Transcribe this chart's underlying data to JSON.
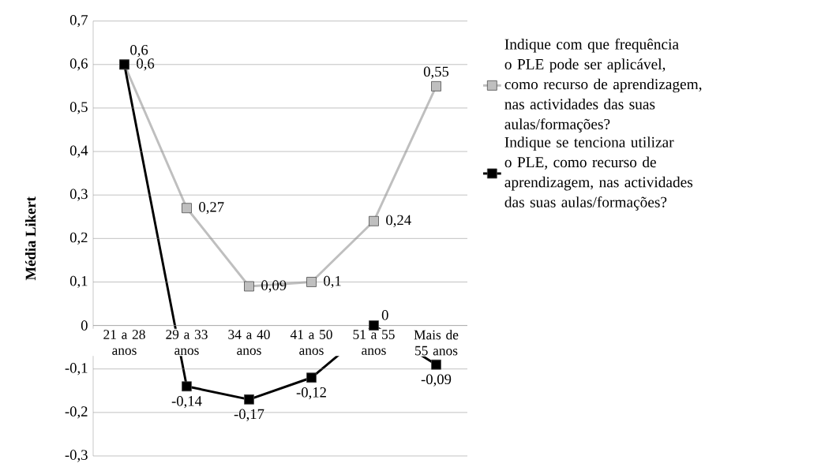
{
  "chart_data": {
    "type": "line",
    "ylabel": "Média Likert",
    "categories": [
      "21 a 28 anos",
      "29 a 33 anos",
      "34 a 40 anos",
      "41 a 50 anos",
      "51 a 55 anos",
      "Mais de 55 anos"
    ],
    "series": [
      {
        "name": "Indique com que frequência o PLE pode ser aplicável, como recurso de aprendizagem, nas actividades das suas aulas/formações?",
        "color": "#bfbfbf",
        "values": [
          0.6,
          0.27,
          0.09,
          0.1,
          0.24,
          0.55
        ],
        "value_labels": [
          "0,6",
          "0,27",
          "0,09",
          "0,1",
          "0,24",
          "0,55"
        ]
      },
      {
        "name": "Indique se tenciona utilizar o PLE, como recurso de aprendizagem, nas actividades das suas aulas/formações?",
        "color": "#000000",
        "values": [
          0.6,
          -0.14,
          -0.17,
          -0.12,
          0,
          -0.09
        ],
        "value_labels": [
          "0,6",
          "-0,14",
          "-0,17",
          "-0,12",
          "0",
          "-0,09"
        ]
      }
    ],
    "ylim": [
      -0.3,
      0.7
    ],
    "yticks": [
      {
        "value": -0.3,
        "label": "-0,3"
      },
      {
        "value": -0.2,
        "label": "-0,2"
      },
      {
        "value": -0.1,
        "label": "-0,1"
      },
      0,
      {
        "value": 0.1,
        "label": "0,1"
      },
      {
        "value": 0.2,
        "label": "0,2"
      },
      {
        "value": 0.3,
        "label": "0,3"
      },
      {
        "value": 0.4,
        "label": "0,4"
      },
      {
        "value": 0.5,
        "label": "0,5"
      },
      {
        "value": 0.6,
        "label": "0,6"
      },
      {
        "value": 0.7,
        "label": "0,7"
      }
    ],
    "grid": "y",
    "legend": "right",
    "marker": "square",
    "line_style": "solid"
  }
}
